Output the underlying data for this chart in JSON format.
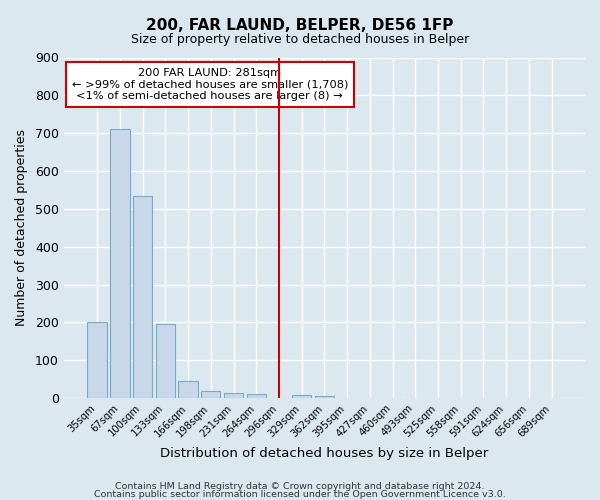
{
  "title": "200, FAR LAUND, BELPER, DE56 1FP",
  "subtitle": "Size of property relative to detached houses in Belper",
  "xlabel": "Distribution of detached houses by size in Belper",
  "ylabel": "Number of detached properties",
  "bar_color": "#c8d8ea",
  "bar_edge_color": "#7aaac8",
  "categories": [
    "35sqm",
    "67sqm",
    "100sqm",
    "133sqm",
    "166sqm",
    "198sqm",
    "231sqm",
    "264sqm",
    "296sqm",
    "329sqm",
    "362sqm",
    "395sqm",
    "427sqm",
    "460sqm",
    "493sqm",
    "525sqm",
    "558sqm",
    "591sqm",
    "624sqm",
    "656sqm",
    "689sqm"
  ],
  "values": [
    200,
    710,
    535,
    195,
    45,
    20,
    15,
    10,
    0,
    8,
    5,
    0,
    0,
    0,
    0,
    0,
    0,
    0,
    0,
    0,
    0
  ],
  "vline_color": "#cc0000",
  "annotation_line1": "200 FAR LAUND: 281sqm",
  "annotation_line2": "← >99% of detached houses are smaller (1,708)",
  "annotation_line3": "<1% of semi-detached houses are larger (8) →",
  "annotation_box_color": "#ffffff",
  "annotation_box_edge": "#cc0000",
  "ylim": [
    0,
    900
  ],
  "yticks": [
    0,
    100,
    200,
    300,
    400,
    500,
    600,
    700,
    800,
    900
  ],
  "footer1": "Contains HM Land Registry data © Crown copyright and database right 2024.",
  "footer2": "Contains public sector information licensed under the Open Government Licence v3.0.",
  "background_color": "#dce8f0",
  "grid_color": "#ffffff"
}
